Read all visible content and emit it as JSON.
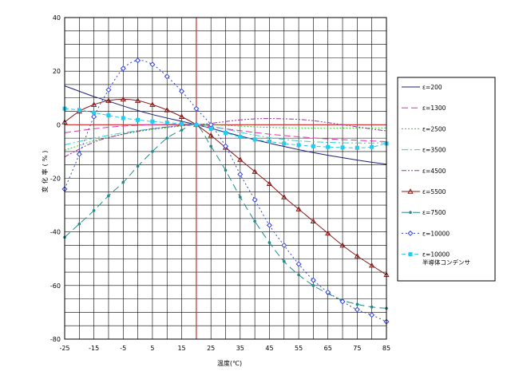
{
  "chart_data": {
    "type": "line",
    "xlabel": "温度(℃)",
    "ylabel": "変化率(%)",
    "xlim": [
      -25,
      85
    ],
    "ylim": [
      -80,
      40
    ],
    "x_ticks": [
      -25,
      -15,
      -5,
      5,
      15,
      25,
      35,
      45,
      55,
      65,
      75,
      85
    ],
    "y_ticks": [
      40,
      20,
      0,
      -20,
      -40,
      -60,
      -80
    ],
    "x_minor_step": 5,
    "y_minor_step": 5,
    "grid": true,
    "reference_line_x": 20,
    "reference_line_y": 0,
    "reference_color": "#d42a2a",
    "legend_position": "right",
    "series": [
      {
        "name": "ε=200",
        "color": "#1f1f7a",
        "dash": "",
        "marker": "none",
        "x": [
          -25,
          -20,
          -15,
          -10,
          -5,
          0,
          5,
          10,
          15,
          20,
          25,
          30,
          35,
          40,
          45,
          50,
          55,
          60,
          65,
          70,
          75,
          80,
          85
        ],
        "y": [
          14.5,
          12.5,
          10.5,
          8.8,
          7,
          5.3,
          3.8,
          2.5,
          1.3,
          0,
          -1.3,
          -2.8,
          -4.2,
          -5.6,
          -6.9,
          -8.1,
          -9.3,
          -10.4,
          -11.4,
          -12.3,
          -13.2,
          -14,
          -14.7
        ]
      },
      {
        "name": "ε=1300",
        "color": "#e830b0",
        "dash": "8,4",
        "marker": "none",
        "x": [
          -25,
          -15,
          -5,
          5,
          15,
          20,
          25,
          35,
          45,
          55,
          65,
          75,
          85
        ],
        "y": [
          -3,
          -1.5,
          -0.5,
          0,
          0.2,
          0,
          -0.8,
          -2.2,
          -3.5,
          -4.5,
          -5.3,
          -5.8,
          -6.3
        ]
      },
      {
        "name": "ε=2500",
        "color": "#33cc33",
        "dash": "2,2",
        "marker": "none",
        "x": [
          -25,
          -15,
          -5,
          5,
          15,
          20,
          25,
          35,
          45,
          55,
          65,
          75,
          85
        ],
        "y": [
          -9.5,
          -6,
          -3.5,
          -1.8,
          -0.5,
          0,
          0,
          -0.5,
          -1,
          -1.2,
          -1.3,
          -1.2,
          -1.2
        ]
      },
      {
        "name": "ε=3500",
        "color": "#33cccc",
        "dash": "8,3,2,3",
        "marker": "none",
        "x": [
          -25,
          -15,
          -5,
          5,
          15,
          20,
          25,
          35,
          45,
          55,
          65,
          75,
          85
        ],
        "y": [
          -7.5,
          -5,
          -3,
          -1.5,
          -0.3,
          0,
          -0.5,
          -2.8,
          -4.8,
          -6,
          -6.6,
          -6.8,
          -6.8
        ]
      },
      {
        "name": "ε=4500",
        "color": "#a030a0",
        "dash": "6,2,2,2,2,2",
        "marker": "none",
        "x": [
          -25,
          -15,
          -5,
          5,
          15,
          20,
          25,
          30,
          35,
          40,
          45,
          50,
          55,
          60,
          65,
          70,
          75,
          80,
          85
        ],
        "y": [
          -12,
          -6.5,
          -3.5,
          -1.5,
          -0.3,
          0,
          0.5,
          1.2,
          1.8,
          2.2,
          2.3,
          2.2,
          2,
          1.5,
          0.8,
          0,
          -0.8,
          -1.6,
          -2.3
        ]
      },
      {
        "name": "ε=5500",
        "color": "#8b1a1a",
        "dash": "",
        "marker": "triangle",
        "x": [
          -25,
          -20,
          -15,
          -10,
          -5,
          0,
          5,
          10,
          15,
          20,
          25,
          30,
          35,
          40,
          45,
          50,
          55,
          60,
          65,
          70,
          75,
          80,
          85
        ],
        "y": [
          1,
          5,
          7.5,
          9,
          9.5,
          9,
          7.5,
          5.5,
          3,
          0,
          -4,
          -8.5,
          -13,
          -17.5,
          -22,
          -27,
          -31.5,
          -36,
          -40.5,
          -45,
          -49,
          -52.5,
          -56
        ]
      },
      {
        "name": "ε=7500",
        "color": "#208a8a",
        "dash": "9,5",
        "marker": "dot",
        "x": [
          -25,
          -20,
          -15,
          -10,
          -5,
          0,
          5,
          10,
          15,
          20,
          25,
          30,
          35,
          40,
          45,
          50,
          55,
          60,
          65,
          70,
          75,
          80,
          85
        ],
        "y": [
          -42,
          -37,
          -32,
          -26.5,
          -21.5,
          -15.5,
          -10,
          -5,
          -2,
          0,
          -8,
          -17,
          -27,
          -36,
          -44,
          -51,
          -56,
          -60,
          -63,
          -65.5,
          -67,
          -68,
          -68.5
        ]
      },
      {
        "name": "ε=10000",
        "color": "#3344dd",
        "dash": "2,3",
        "marker": "diamond",
        "x": [
          -25,
          -20,
          -15,
          -10,
          -5,
          0,
          5,
          10,
          15,
          20,
          25,
          30,
          35,
          40,
          45,
          50,
          55,
          60,
          65,
          70,
          75,
          80,
          85
        ],
        "y": [
          -24,
          -11,
          3,
          13,
          21,
          24,
          22.5,
          18,
          12.5,
          6,
          0,
          -8,
          -18.5,
          -28,
          -37.5,
          -45,
          -52,
          -58,
          -62.5,
          -66,
          -69,
          -71,
          -73.5
        ]
      },
      {
        "name": "ε=10000",
        "name2": "半導体コンデンサ",
        "color": "#22ccee",
        "dash": "5,3",
        "marker": "square",
        "x": [
          -25,
          -20,
          -15,
          -10,
          -5,
          0,
          5,
          10,
          15,
          20,
          25,
          30,
          35,
          40,
          45,
          50,
          55,
          60,
          65,
          70,
          75,
          80,
          85
        ],
        "y": [
          6,
          5.5,
          4.5,
          3.5,
          2.5,
          1.8,
          1.2,
          0.8,
          0.4,
          0,
          -1.5,
          -3,
          -4.5,
          -5.5,
          -6.3,
          -7,
          -7.6,
          -8,
          -8.3,
          -8.5,
          -8.6,
          -8.3,
          -7
        ]
      }
    ]
  }
}
